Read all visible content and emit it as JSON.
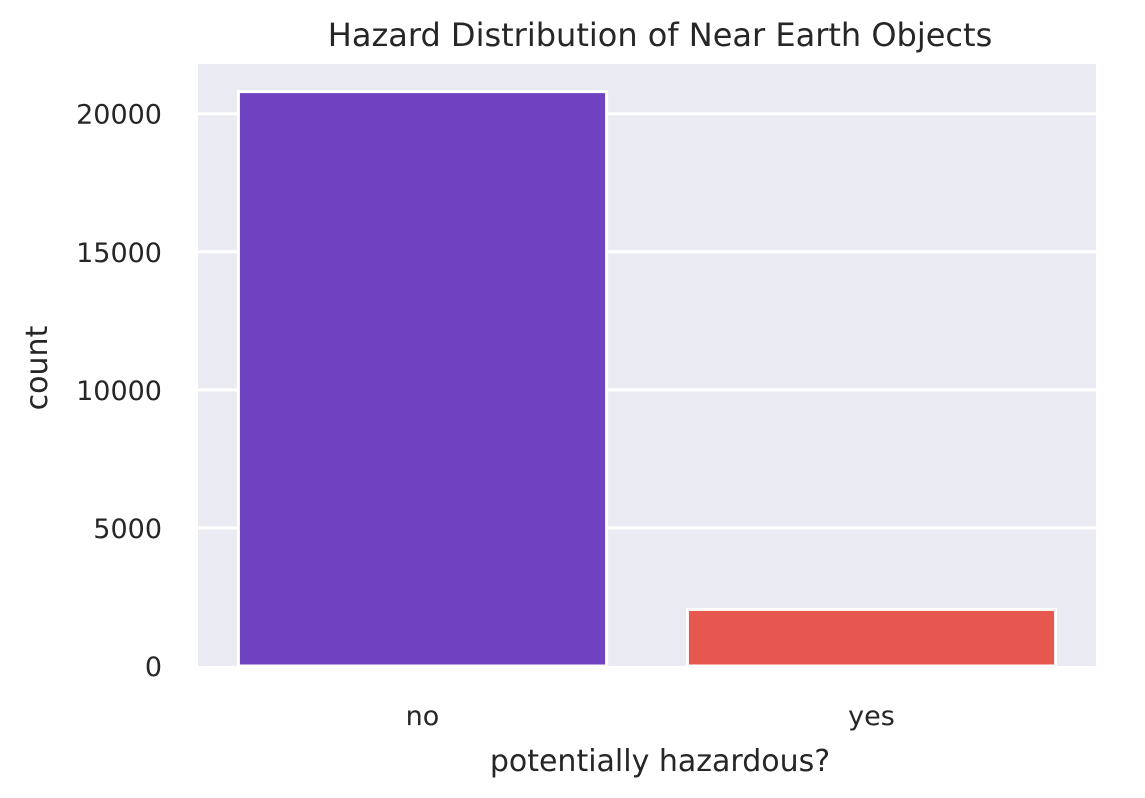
{
  "chart_data": {
    "type": "bar",
    "title": "Hazard Distribution of Near Earth Objects",
    "xlabel": "potentially hazardous?",
    "ylabel": "count",
    "categories": [
      "no",
      "yes"
    ],
    "values": [
      20800,
      2050
    ],
    "colors": [
      "#6f42c1",
      "#e5574f"
    ],
    "ylim": [
      0,
      21800
    ],
    "yticks": [
      0,
      5000,
      10000,
      15000,
      20000
    ],
    "grid": true,
    "legend": "none",
    "background": "#eaeaf2"
  }
}
